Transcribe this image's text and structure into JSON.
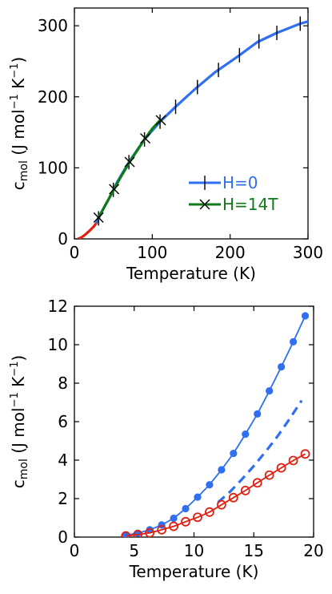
{
  "colors": {
    "blue": "#2f6ff0",
    "green": "#0f7a18",
    "red": "#e02010",
    "black": "#000000"
  },
  "chart_data": [
    {
      "type": "line",
      "xlabel": "Temperature (K)",
      "ylabel": {
        "main": "c",
        "sub": "mol",
        "units": " (J mol",
        "sup1": "−1",
        "mid": " K",
        "sup2": "−1",
        "close": ")"
      },
      "xlim": [
        0,
        300
      ],
      "ylim": [
        0,
        325
      ],
      "xticks": [
        0,
        100,
        200,
        300
      ],
      "yticks": [
        0,
        100,
        200,
        300
      ],
      "xtick_labels": [
        "0",
        "100",
        "200",
        "300"
      ],
      "ytick_labels": [
        "0",
        "100",
        "200",
        "300"
      ],
      "legend": {
        "position": "right",
        "entries": [
          {
            "label": "H=0",
            "color": "blue",
            "marker": "vline"
          },
          {
            "label": "H=14T",
            "color": "green",
            "marker": "cross"
          }
        ]
      },
      "series": [
        {
          "name": "H=0",
          "color": "blue",
          "marker": "vline",
          "x": [
            28,
            35,
            45,
            55,
            70,
            90,
            110,
            130,
            155,
            180,
            210,
            235,
            260,
            290,
            300
          ],
          "y": [
            22,
            38,
            58,
            80,
            108,
            140,
            165,
            186,
            211,
            234,
            257,
            277,
            290,
            303,
            306
          ],
          "marker_x": [
            31,
            50,
            70,
            90,
            110,
            130,
            158,
            185,
            212,
            237,
            260,
            290
          ]
        },
        {
          "name": "H=14T",
          "color": "green",
          "marker": "cross",
          "x": [
            30,
            40,
            50,
            60,
            72,
            90,
            100,
            110
          ],
          "y": [
            28,
            48,
            68,
            88,
            110,
            140,
            155,
            167
          ],
          "marker_x": [
            31,
            51,
            71,
            91,
            111
          ]
        },
        {
          "name": "",
          "color": "red",
          "marker": "none",
          "x": [
            4,
            6,
            8,
            10,
            12,
            15,
            18,
            20,
            22,
            24,
            26,
            28
          ],
          "y": [
            0,
            0.6,
            1.6,
            2.8,
            4.4,
            7.0,
            10.0,
            12.0,
            14.2,
            16.5,
            19.0,
            22
          ]
        }
      ]
    },
    {
      "type": "line",
      "xlabel": "Temperature (K)",
      "ylabel": {
        "main": "c",
        "sub": "mol",
        "units": " (J mol",
        "sup1": "−1",
        "mid": " K",
        "sup2": "−1",
        "close": ")"
      },
      "xlim": [
        0,
        20
      ],
      "ylim": [
        0,
        12
      ],
      "xticks": [
        0,
        5,
        10,
        15,
        20
      ],
      "yticks": [
        0,
        2,
        4,
        6,
        8,
        10,
        12
      ],
      "xtick_labels": [
        "0",
        "5",
        "10",
        "15",
        "20"
      ],
      "ytick_labels": [
        "0",
        "2",
        "4",
        "6",
        "8",
        "10",
        "12"
      ],
      "series": [
        {
          "name": "",
          "color": "blue",
          "marker": "filled-circle",
          "line": "solid",
          "x": [
            4.3,
            5.3,
            6.3,
            7.3,
            8.3,
            9.3,
            10.3,
            11.3,
            12.3,
            13.3,
            14.3,
            15.3,
            16.3,
            17.3,
            18.3,
            19.3
          ],
          "y": [
            0.1,
            0.2,
            0.38,
            0.63,
            0.98,
            1.48,
            2.08,
            2.72,
            3.5,
            4.35,
            5.35,
            6.4,
            7.6,
            8.85,
            10.15,
            11.5
          ]
        },
        {
          "name": "",
          "color": "blue",
          "marker": "none",
          "line": "dashed",
          "x": [
            12,
            13,
            14,
            15,
            16,
            17,
            18,
            19
          ],
          "y": [
            1.8,
            2.35,
            3.0,
            3.7,
            4.45,
            5.25,
            6.15,
            7.1
          ]
        },
        {
          "name": "",
          "color": "red",
          "marker": "open-circle",
          "line": "solid",
          "x": [
            4.3,
            5.3,
            6.3,
            7.3,
            8.3,
            9.3,
            10.3,
            11.3,
            12.3,
            13.3,
            14.3,
            15.3,
            16.3,
            17.3,
            18.3,
            19.3
          ],
          "y": [
            0.06,
            0.13,
            0.22,
            0.38,
            0.56,
            0.8,
            1.03,
            1.3,
            1.68,
            2.05,
            2.42,
            2.82,
            3.22,
            3.6,
            3.98,
            4.32
          ]
        }
      ]
    }
  ]
}
